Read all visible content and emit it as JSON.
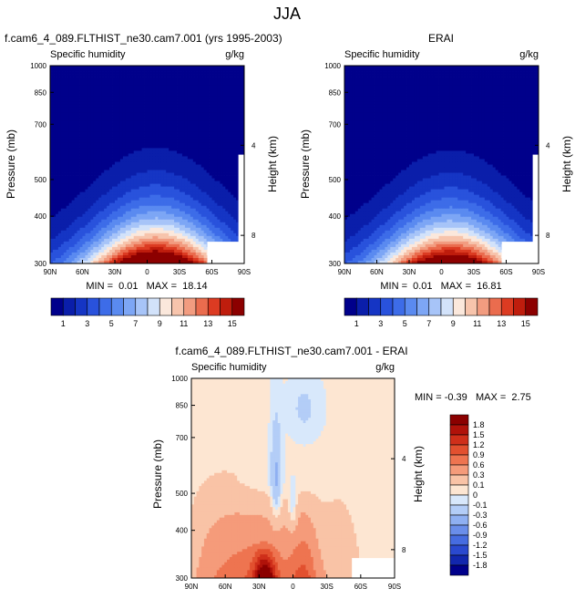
{
  "figure_title": "JJA",
  "chart_data": [
    {
      "type": "heatmap",
      "title": "f.cam6_4_089.FLTHIST_ne30.cam7.001 (yrs 1995-2003)",
      "left_string": "Specific humidity",
      "right_string": "g/kg",
      "ylabel": "Pressure (mb)",
      "ylabel_right": "Height (km)",
      "x_ticks": [
        "90N",
        "60N",
        "30N",
        "0",
        "30S",
        "60S",
        "90S"
      ],
      "y_ticks": [
        "300",
        "400",
        "500",
        "700",
        "850",
        "1000"
      ],
      "y_right_ticks": [
        "8",
        "4"
      ],
      "stats": "MIN =  0.01   MAX =  18.14",
      "min": 0.01,
      "max": 18.14,
      "peak_lat": -8,
      "levels": [
        1,
        2,
        3,
        4,
        5,
        6,
        7,
        8,
        9,
        10,
        11,
        12,
        13,
        14,
        15
      ],
      "level_labels": [
        "1",
        "3",
        "5",
        "7",
        "9",
        "11",
        "13",
        "15"
      ],
      "palette": [
        "#00008b",
        "#0a1eaa",
        "#1535c4",
        "#2952dc",
        "#3d6ce8",
        "#5a8af0",
        "#7da6f5",
        "#a7c4f8",
        "#d2e2fa",
        "#fbe8dc",
        "#f7c4ac",
        "#f29c80",
        "#ea6c4e",
        "#dc3b22",
        "#bf1d0d",
        "#8c0000"
      ]
    },
    {
      "type": "heatmap",
      "title": "ERAI",
      "left_string": "Specific humidity",
      "right_string": "g/kg",
      "ylabel": "Pressure (mb)",
      "ylabel_right": "Height (km)",
      "x_ticks": [
        "90N",
        "60N",
        "30N",
        "0",
        "30S",
        "60S",
        "90S"
      ],
      "y_ticks": [
        "300",
        "400",
        "500",
        "700",
        "850",
        "1000"
      ],
      "y_right_ticks": [
        "8",
        "4"
      ],
      "stats": "MIN =  0.01   MAX =  16.81",
      "min": 0.01,
      "max": 16.81,
      "peak_lat": -8,
      "levels": [
        1,
        2,
        3,
        4,
        5,
        6,
        7,
        8,
        9,
        10,
        11,
        12,
        13,
        14,
        15
      ],
      "level_labels": [
        "1",
        "3",
        "5",
        "7",
        "9",
        "11",
        "13",
        "15"
      ],
      "palette": [
        "#00008b",
        "#0a1eaa",
        "#1535c4",
        "#2952dc",
        "#3d6ce8",
        "#5a8af0",
        "#7da6f5",
        "#a7c4f8",
        "#d2e2fa",
        "#fbe8dc",
        "#f7c4ac",
        "#f29c80",
        "#ea6c4e",
        "#dc3b22",
        "#bf1d0d",
        "#8c0000"
      ]
    },
    {
      "type": "heatmap",
      "title": "f.cam6_4_089.FLTHIST_ne30.cam7.001 - ERAI",
      "left_string": "Specific humidity",
      "right_string": "g/kg",
      "ylabel": "Pressure (mb)",
      "ylabel_right": "Height (km)",
      "x_ticks": [
        "90N",
        "60N",
        "30N",
        "0",
        "30S",
        "60S",
        "90S"
      ],
      "y_ticks": [
        "300",
        "400",
        "500",
        "700",
        "850",
        "1000"
      ],
      "y_right_ticks": [
        "8",
        "4"
      ],
      "stats": "MIN = -0.39   MAX =  2.75",
      "min": -0.39,
      "max": 2.75,
      "level_labels": [
        "1.8",
        "1.5",
        "1.2",
        "0.9",
        "0.6",
        "0.3",
        "0.1",
        "0",
        "-0.1",
        "-0.3",
        "-0.6",
        "-0.9",
        "-1.2",
        "-1.5",
        "-1.8"
      ],
      "palette_top_to_bottom": [
        "#8b0000",
        "#b0120a",
        "#cf2f1a",
        "#e2502f",
        "#ee7450",
        "#f59b7a",
        "#f9c3a6",
        "#fde6d2",
        "#d8e8fb",
        "#b3cdf7",
        "#8fb0f2",
        "#6a8eea",
        "#466ce0",
        "#2a49cf",
        "#1227ae",
        "#00008b"
      ]
    }
  ]
}
